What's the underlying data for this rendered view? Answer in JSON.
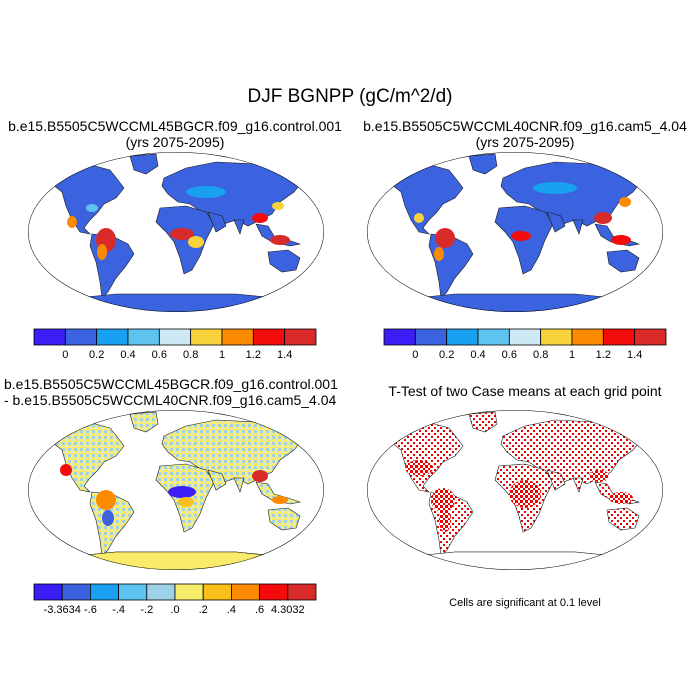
{
  "figure": {
    "title": "DJF BGNPP (gC/m^2/d)"
  },
  "panels": [
    {
      "title_line1": "b.e15.B5505C5WCCML45BGCR.f09_g16.control.001",
      "title_line2": "(yrs 2075-2095)",
      "colorbar": {
        "colors": [
          "#3a1ef5",
          "#3b63df",
          "#1aa0f0",
          "#5ec3ef",
          "#cfe8f6",
          "#f8d23a",
          "#fb8a00",
          "#f40c0c",
          "#d92a2a"
        ],
        "labels": [
          "0",
          "0.2",
          "0.4",
          "0.6",
          "0.8",
          "1",
          "1.2",
          "1.4"
        ]
      }
    },
    {
      "title_line1": "b.e15.B5505C5WCCML40CNR.f09_g16.cam5_4.04",
      "title_line2": "(yrs 2075-2095)",
      "colorbar": {
        "colors": [
          "#3a1ef5",
          "#3b63df",
          "#1aa0f0",
          "#5ec3ef",
          "#cfe8f6",
          "#f8d23a",
          "#fb8a00",
          "#f40c0c",
          "#d92a2a"
        ],
        "labels": [
          "0",
          "0.2",
          "0.4",
          "0.6",
          "0.8",
          "1",
          "1.2",
          "1.4"
        ]
      }
    },
    {
      "title_line1": "b.e15.B5505C5WCCML45BGCR.f09_g16.control.001",
      "title_line2": "- b.e15.B5505C5WCCML40CNR.f09_g16.cam5_4.04",
      "colorbar": {
        "colors": [
          "#3a1ef5",
          "#3b63df",
          "#1aa0f0",
          "#5ec3ef",
          "#9fd2ea",
          "#f8ec6a",
          "#f8c01a",
          "#fb8a00",
          "#f40c0c",
          "#d92a2a"
        ],
        "labels": [
          "-3.3634",
          "-.6",
          "-.4",
          "-.2",
          ".0",
          ".2",
          ".4",
          ".6",
          "4.3032"
        ]
      }
    },
    {
      "title_line1": "T-Test of two Case means at each grid point",
      "footnote": "Cells are significant at 0.1 level"
    }
  ]
}
